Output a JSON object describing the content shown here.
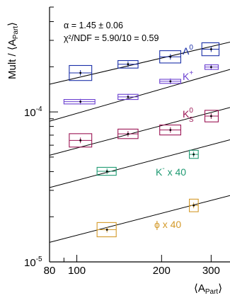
{
  "chart_data": {
    "type": "scatter",
    "xscale": "log",
    "yscale": "log",
    "xlim": [
      80,
      350
    ],
    "ylim": [
      1e-05,
      0.0005
    ],
    "xticks_major": [
      80,
      100,
      200,
      300
    ],
    "xtick_labels": [
      "80",
      "100",
      "200",
      "300"
    ],
    "yticks_major": [
      1e-05,
      0.0001
    ],
    "ytick_labels": [
      "10",
      "10"
    ],
    "ytick_exponents": [
      "-5",
      "-4"
    ],
    "xlabel": "⟨A",
    "xlabel_sub": "Part",
    "xlabel_end": "⟩",
    "ylabel": "Mult / ⟨A",
    "ylabel_sub": "Part",
    "ylabel_end": "⟩",
    "fit_alpha": "α = 1.45 ± 0.06",
    "fit_chi2": "χ²/NDF = 5.90/10 = 0.59",
    "series": [
      {
        "label": "Λ",
        "label_sup": "0",
        "color": "#1a2fa8",
        "x": [
          103,
          152,
          215,
          300
        ],
        "y": [
          0.000182,
          0.000208,
          0.000233,
          0.000262
        ],
        "box_x": [
          [
            94,
            113
          ],
          [
            140,
            165
          ],
          [
            197,
            234
          ],
          [
            278,
            320
          ]
        ],
        "box_y": [
          [
            0.000162,
            0.000204
          ],
          [
            0.000196,
            0.00022
          ],
          [
            0.000212,
            0.000256
          ],
          [
            0.000237,
            0.000289
          ]
        ],
        "fit": [
          [
            80,
            0.000153
          ],
          [
            350,
            0.000292
          ]
        ]
      },
      {
        "label": "K",
        "label_sup": "+",
        "color": "#6a3fd0",
        "x": [
          103,
          152,
          215,
          300
        ],
        "y": [
          0.000117,
          0.000126,
          0.00016,
          0.000199
        ],
        "box_x": [
          [
            90,
            116
          ],
          [
            140,
            165
          ],
          [
            197,
            234
          ],
          [
            285,
            318
          ]
        ],
        "box_y": [
          [
            0.000113,
            0.000121
          ],
          [
            0.000121,
            0.000131
          ],
          [
            0.000155,
            0.000165
          ],
          [
            0.000192,
            0.000206
          ]
        ],
        "fit": [
          [
            80,
            8.67e-05
          ],
          [
            350,
            0.000192
          ]
        ]
      },
      {
        "label": "K",
        "label_sup": "0",
        "label_sub": "S",
        "color": "#9b1554",
        "x": [
          103,
          152,
          215,
          300
        ],
        "y": [
          6.46e-05,
          7.14e-05,
          7.58e-05,
          9.38e-05
        ],
        "box_x": [
          [
            94,
            113
          ],
          [
            140,
            165
          ],
          [
            197,
            234
          ],
          [
            285,
            318
          ]
        ],
        "box_y": [
          [
            5.83e-05,
            7.16e-05
          ],
          [
            6.64e-05,
            7.68e-05
          ],
          [
            7.02e-05,
            8.18e-05
          ],
          [
            8.58e-05,
            0.0001025
          ]
        ],
        "fit": [
          [
            80,
            5.14e-05
          ],
          [
            350,
            0.000107
          ]
        ]
      },
      {
        "label": "K",
        "label_sup": "-",
        "label_rest": " x 40",
        "color": "#1f9a72",
        "x": [
          128,
          260
        ],
        "y": [
          4.02e-05,
          5.21e-05
        ],
        "box_x": [
          [
            118,
            138
          ],
          [
            251,
            270
          ]
        ],
        "box_y": [
          [
            3.78e-05,
            4.27e-05
          ],
          [
            4.9e-05,
            5.55e-05
          ]
        ],
        "fit": [
          [
            80,
            3.13e-05
          ],
          [
            350,
            6.52e-05
          ]
        ]
      },
      {
        "label": "ϕ x 40",
        "color": "#d49a2a",
        "x": [
          128,
          260
        ],
        "y": [
          1.64e-05,
          2.38e-05
        ],
        "box_x": [
          [
            118,
            138
          ],
          [
            251,
            270
          ]
        ],
        "box_y": [
          [
            1.47e-05,
            1.83e-05
          ],
          [
            2.16e-05,
            2.62e-05
          ]
        ],
        "fit": [
          [
            80,
            1.35e-05
          ],
          [
            350,
            2.77e-05
          ]
        ]
      }
    ]
  }
}
